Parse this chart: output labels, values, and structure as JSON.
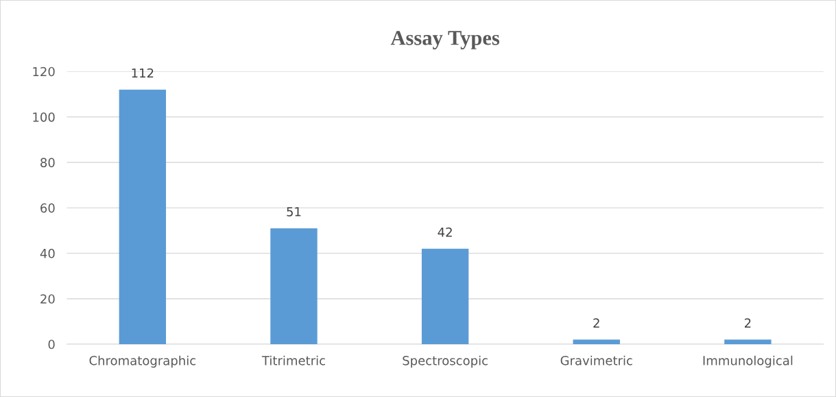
{
  "chart_data": {
    "type": "bar",
    "title": "Assay Types",
    "categories": [
      "Chromatographic",
      "Titrimetric",
      "Spectroscopic",
      "Gravimetric",
      "Immunological"
    ],
    "values": [
      112,
      51,
      42,
      2,
      2
    ],
    "color": "#5b9bd5",
    "ylim": [
      0,
      120
    ],
    "yticks": [
      0,
      20,
      40,
      60,
      80,
      100,
      120
    ],
    "grid": "y",
    "data_labels": true
  }
}
